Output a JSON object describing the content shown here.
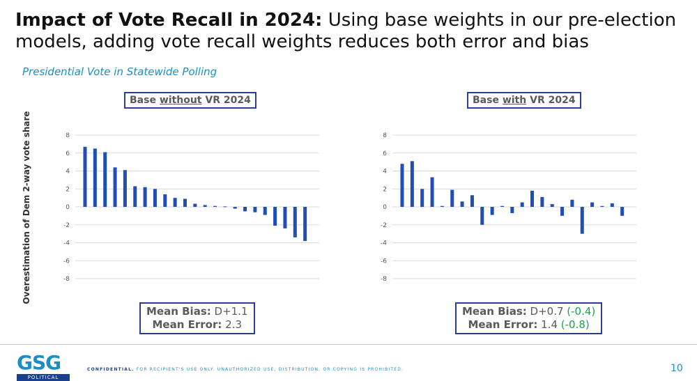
{
  "title": {
    "bold": "Impact of Vote Recall in 2024:",
    "rest": " Using base weights in our pre-election models, adding vote recall weights reduces both error and bias"
  },
  "subtitle": "Presidential Vote in Statewide Polling",
  "ylabel": "Overestimation of Dem 2-way vote share",
  "panels": [
    {
      "title_pre": "Base ",
      "title_u": "without",
      "title_post": " VR 2024",
      "mean_bias_label": "Mean Bias:",
      "mean_bias_value": "D+1.1",
      "mean_bias_delta": "",
      "mean_error_label": "Mean Error:",
      "mean_error_value": "2.3",
      "mean_error_delta": ""
    },
    {
      "title_pre": "Base ",
      "title_u": "with",
      "title_post": " VR 2024",
      "mean_bias_label": "Mean Bias:",
      "mean_bias_value": "D+0.7",
      "mean_bias_delta": "(-0.4)",
      "mean_error_label": "Mean Error:",
      "mean_error_value": "1.4",
      "mean_error_delta": "(-0.8)"
    }
  ],
  "chart_data": [
    {
      "type": "bar",
      "title": "Base without VR 2024",
      "ylabel": "Overestimation of Dem 2-way vote share",
      "ylim": [
        -8,
        8
      ],
      "yticks": [
        -8,
        -6,
        -4,
        -2,
        0,
        2,
        4,
        6,
        8
      ],
      "color": "#1f4eb4",
      "values": [
        6.7,
        6.5,
        6.1,
        4.4,
        4.1,
        2.3,
        2.2,
        2.0,
        1.4,
        1.0,
        0.9,
        0.35,
        0.2,
        0.1,
        0.05,
        -0.2,
        -0.5,
        -0.6,
        -0.9,
        -2.1,
        -2.4,
        -3.4,
        -3.8
      ]
    },
    {
      "type": "bar",
      "title": "Base with VR 2024",
      "ylabel": "Overestimation of Dem 2-way vote share",
      "ylim": [
        -8,
        8
      ],
      "yticks": [
        -8,
        -6,
        -4,
        -2,
        0,
        2,
        4,
        6,
        8
      ],
      "color": "#1f4eb4",
      "values": [
        4.8,
        5.1,
        2.0,
        3.3,
        0.1,
        1.9,
        0.6,
        1.3,
        -2.0,
        -0.9,
        0.1,
        -0.7,
        0.5,
        1.8,
        1.1,
        0.3,
        -1.0,
        0.8,
        -3.0,
        0.5,
        0.1,
        0.4,
        -1.0
      ]
    }
  ],
  "footer": {
    "logo": "GSG",
    "logo_sub": "POLITICAL",
    "confidential_bold": "CONFIDENTIAL.",
    "confidential_rest": " FOR RECIPIENT'S USE ONLY. UNAUTHORIZED USE, DISTRIBUTION, OR COPYING IS PROHIBITED.",
    "page": "10"
  }
}
